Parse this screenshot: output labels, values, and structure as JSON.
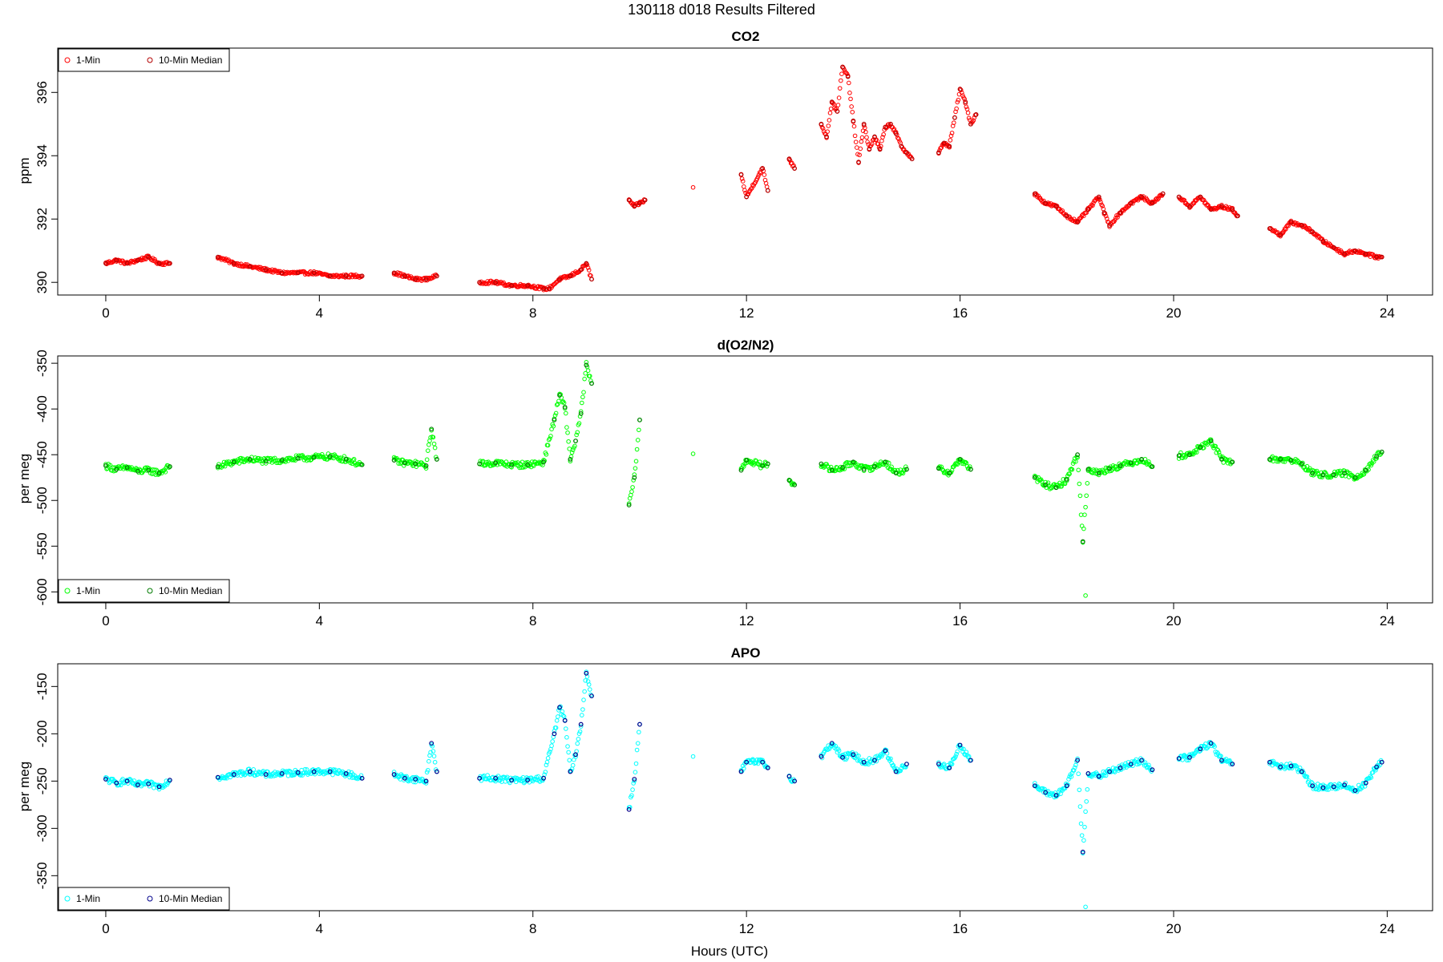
{
  "figure": {
    "title": "130118   d018   Results Filtered",
    "xlabel": "Hours (UTC)"
  },
  "chart_data": [
    {
      "type": "scatter",
      "title": "CO2",
      "ylabel": "ppm",
      "xlim": [
        -0.9,
        24.85
      ],
      "ylim": [
        389.6,
        397.4
      ],
      "xticks": [
        0,
        4,
        8,
        12,
        16,
        20,
        24
      ],
      "yticks": [
        390,
        392,
        394,
        396
      ],
      "legend": {
        "position": "top-left",
        "entries": [
          "1-Min",
          "10-Min Median"
        ]
      },
      "color_1min": "#ff0000",
      "color_median": "#b30000",
      "segments": [
        {
          "x": [
            0.0,
            0.2,
            0.4,
            0.6,
            0.8,
            1.0,
            1.2
          ],
          "y": [
            390.6,
            390.7,
            390.6,
            390.7,
            390.8,
            390.6,
            390.6
          ]
        },
        {
          "x": [
            2.1,
            2.4,
            2.7,
            3.0,
            3.3,
            3.6,
            3.9,
            4.2,
            4.5,
            4.8
          ],
          "y": [
            390.8,
            390.6,
            390.5,
            390.4,
            390.3,
            390.3,
            390.3,
            390.2,
            390.2,
            390.2
          ]
        },
        {
          "x": [
            5.4,
            5.6,
            5.8,
            6.0,
            6.2
          ],
          "y": [
            390.3,
            390.2,
            390.1,
            390.1,
            390.2
          ]
        },
        {
          "x": [
            7.0,
            7.3,
            7.6,
            7.9,
            8.2,
            8.3,
            8.5,
            8.7,
            8.9,
            9.0,
            9.1
          ],
          "y": [
            390.0,
            390.0,
            389.9,
            389.9,
            389.8,
            389.8,
            390.1,
            390.2,
            390.4,
            390.6,
            390.1
          ]
        },
        {
          "x": [
            9.8,
            9.9,
            10.0,
            10.1
          ],
          "y": [
            392.6,
            392.4,
            392.5,
            392.6
          ]
        },
        {
          "x": [
            11.0
          ],
          "y": [
            393.0
          ]
        },
        {
          "x": [
            11.9,
            12.0,
            12.3,
            12.4
          ],
          "y": [
            393.4,
            392.7,
            393.6,
            392.9
          ]
        },
        {
          "x": [
            12.8,
            12.9
          ],
          "y": [
            393.9,
            393.6
          ]
        },
        {
          "x": [
            13.4,
            13.5,
            13.6,
            13.7,
            13.8,
            13.9,
            14.0,
            14.1,
            14.2,
            14.3,
            14.4,
            14.5,
            14.6,
            14.7,
            14.8,
            14.9,
            15.0,
            15.1
          ],
          "y": [
            395.0,
            394.6,
            395.7,
            395.4,
            396.8,
            396.5,
            395.1,
            393.8,
            395.0,
            394.2,
            394.6,
            394.2,
            394.9,
            395.0,
            394.7,
            394.3,
            394.1,
            393.9
          ]
        },
        {
          "x": [
            15.6,
            15.7,
            15.8,
            15.9,
            16.0,
            16.1,
            16.2,
            16.3
          ],
          "y": [
            394.1,
            394.4,
            394.3,
            395.2,
            396.1,
            395.7,
            395.0,
            395.3
          ]
        },
        {
          "x": [
            17.4,
            17.6,
            17.8,
            18.0,
            18.2,
            18.4,
            18.6,
            18.7,
            18.8,
            19.0,
            19.2,
            19.4,
            19.6,
            19.8
          ],
          "y": [
            392.8,
            392.5,
            392.4,
            392.1,
            391.9,
            392.3,
            392.7,
            392.2,
            391.8,
            392.2,
            392.5,
            392.7,
            392.5,
            392.8
          ]
        },
        {
          "x": [
            20.1,
            20.3,
            20.5,
            20.7,
            20.9,
            21.1,
            21.2
          ],
          "y": [
            392.7,
            392.4,
            392.7,
            392.3,
            392.4,
            392.3,
            392.1
          ]
        },
        {
          "x": [
            21.8,
            22.0,
            22.2,
            22.4,
            22.6,
            22.8,
            23.0,
            23.2,
            23.4,
            23.6,
            23.8,
            23.9
          ],
          "y": [
            391.7,
            391.5,
            391.9,
            391.8,
            391.6,
            391.3,
            391.1,
            390.9,
            391.0,
            390.9,
            390.8,
            390.8
          ]
        }
      ]
    },
    {
      "type": "scatter",
      "title": "d(O2/N2)",
      "ylabel": "per meg",
      "xlim": [
        -0.9,
        24.85
      ],
      "ylim": [
        -612,
        -342
      ],
      "xticks": [
        0,
        4,
        8,
        12,
        16,
        20,
        24
      ],
      "yticks": [
        -350,
        -400,
        -450,
        -500,
        -550,
        -600
      ],
      "legend": {
        "position": "bottom-left",
        "entries": [
          "1-Min",
          "10-Min Median"
        ]
      },
      "color_1min": "#00ff00",
      "color_median": "#007a00",
      "segments": [
        {
          "x": [
            0.0,
            0.2,
            0.4,
            0.6,
            0.8,
            1.0,
            1.2
          ],
          "y": [
            -462,
            -466,
            -464,
            -468,
            -467,
            -470,
            -463
          ]
        },
        {
          "x": [
            2.1,
            2.4,
            2.7,
            3.0,
            3.3,
            3.6,
            3.9,
            4.2,
            4.5,
            4.8
          ],
          "y": [
            -463,
            -458,
            -455,
            -457,
            -456,
            -454,
            -453,
            -452,
            -455,
            -461
          ]
        },
        {
          "x": [
            5.4,
            5.6,
            5.8,
            6.0,
            6.1,
            6.2
          ],
          "y": [
            -456,
            -459,
            -460,
            -462,
            -422,
            -455
          ]
        },
        {
          "x": [
            7.0,
            7.3,
            7.6,
            7.9,
            8.2,
            8.4,
            8.5,
            8.6,
            8.7,
            8.8,
            8.9,
            9.0,
            9.1
          ],
          "y": [
            -460,
            -459,
            -461,
            -461,
            -458,
            -412,
            -385,
            -398,
            -455,
            -435,
            -405,
            -352,
            -372
          ]
        },
        {
          "x": [
            9.8,
            9.9,
            10.0
          ],
          "y": [
            -505,
            -475,
            -412
          ]
        },
        {
          "x": [
            11.0
          ],
          "y": [
            -449
          ]
        },
        {
          "x": [
            11.9,
            12.0,
            12.3,
            12.4
          ],
          "y": [
            -467,
            -456,
            -462,
            -460
          ]
        },
        {
          "x": [
            12.8,
            12.9
          ],
          "y": [
            -478,
            -483
          ]
        },
        {
          "x": [
            13.4,
            13.6,
            13.8,
            14.0,
            14.2,
            14.4,
            14.6,
            14.8,
            15.0
          ],
          "y": [
            -460,
            -467,
            -464,
            -458,
            -466,
            -463,
            -458,
            -470,
            -466
          ]
        },
        {
          "x": [
            15.6,
            15.8,
            16.0,
            16.2
          ],
          "y": [
            -465,
            -470,
            -455,
            -466
          ]
        },
        {
          "x": [
            17.4,
            17.6,
            17.8,
            18.0,
            18.2,
            18.3,
            18.4,
            18.6,
            18.8,
            19.0,
            19.2,
            19.4,
            19.6
          ],
          "y": [
            -475,
            -483,
            -486,
            -477,
            -450,
            -545,
            -466,
            -470,
            -465,
            -462,
            -459,
            -455,
            -463
          ]
        },
        {
          "x": [
            20.1,
            20.3,
            20.5,
            20.7,
            20.9,
            21.1
          ],
          "y": [
            -451,
            -450,
            -442,
            -435,
            -455,
            -458
          ]
        },
        {
          "x": [
            21.8,
            22.0,
            22.2,
            22.4,
            22.6,
            22.8,
            23.0,
            23.2,
            23.4,
            23.6,
            23.8,
            23.9
          ],
          "y": [
            -455,
            -455,
            -456,
            -460,
            -470,
            -472,
            -472,
            -470,
            -475,
            -467,
            -452,
            -447
          ]
        },
        {
          "x": [
            18.35
          ],
          "y": [
            -604
          ]
        }
      ]
    },
    {
      "type": "scatter",
      "title": "APO",
      "ylabel": "per meg",
      "xlim": [
        -0.9,
        24.85
      ],
      "ylim": [
        -387,
        -126
      ],
      "xticks": [
        0,
        4,
        8,
        12,
        16,
        20,
        24
      ],
      "yticks": [
        -150,
        -200,
        -250,
        -300,
        -350
      ],
      "legend": {
        "position": "bottom-left",
        "entries": [
          "1-Min",
          "10-Min Median"
        ]
      },
      "color_1min": "#00ffff",
      "color_median": "#00008b",
      "segments": [
        {
          "x": [
            0.0,
            0.2,
            0.4,
            0.6,
            0.8,
            1.0,
            1.2
          ],
          "y": [
            -248,
            -252,
            -250,
            -254,
            -253,
            -256,
            -249
          ]
        },
        {
          "x": [
            2.1,
            2.4,
            2.7,
            3.0,
            3.3,
            3.6,
            3.9,
            4.2,
            4.5,
            4.8
          ],
          "y": [
            -246,
            -243,
            -240,
            -243,
            -242,
            -241,
            -240,
            -240,
            -242,
            -247
          ]
        },
        {
          "x": [
            5.4,
            5.6,
            5.8,
            6.0,
            6.1,
            6.2
          ],
          "y": [
            -243,
            -247,
            -248,
            -250,
            -210,
            -240
          ]
        },
        {
          "x": [
            7.0,
            7.3,
            7.6,
            7.9,
            8.2,
            8.4,
            8.5,
            8.6,
            8.7,
            8.8,
            8.9,
            9.0,
            9.1
          ],
          "y": [
            -247,
            -247,
            -249,
            -249,
            -247,
            -200,
            -172,
            -186,
            -240,
            -222,
            -190,
            -136,
            -160
          ]
        },
        {
          "x": [
            9.8,
            9.9,
            10.0
          ],
          "y": [
            -280,
            -248,
            -190
          ]
        },
        {
          "x": [
            11.0
          ],
          "y": [
            -224
          ]
        },
        {
          "x": [
            11.9,
            12.0,
            12.3,
            12.4
          ],
          "y": [
            -240,
            -230,
            -230,
            -236
          ]
        },
        {
          "x": [
            12.8,
            12.9
          ],
          "y": [
            -245,
            -250
          ]
        },
        {
          "x": [
            13.4,
            13.6,
            13.8,
            14.0,
            14.2,
            14.4,
            14.6,
            14.8,
            15.0
          ],
          "y": [
            -224,
            -210,
            -225,
            -222,
            -230,
            -228,
            -218,
            -240,
            -232
          ]
        },
        {
          "x": [
            15.6,
            15.8,
            16.0,
            16.2
          ],
          "y": [
            -232,
            -236,
            -212,
            -228
          ]
        },
        {
          "x": [
            17.4,
            17.6,
            17.8,
            18.0,
            18.2,
            18.3,
            18.4,
            18.6,
            18.8,
            19.0,
            19.2,
            19.4,
            19.6
          ],
          "y": [
            -255,
            -262,
            -265,
            -255,
            -228,
            -325,
            -242,
            -245,
            -240,
            -236,
            -232,
            -228,
            -238
          ]
        },
        {
          "x": [
            20.1,
            20.3,
            20.5,
            20.7,
            20.9,
            21.1
          ],
          "y": [
            -226,
            -225,
            -216,
            -210,
            -228,
            -232
          ]
        },
        {
          "x": [
            21.8,
            22.0,
            22.2,
            22.4,
            22.6,
            22.8,
            23.0,
            23.2,
            23.4,
            23.6,
            23.8,
            23.9
          ],
          "y": [
            -230,
            -235,
            -234,
            -240,
            -255,
            -257,
            -256,
            -254,
            -260,
            -252,
            -235,
            -230
          ]
        },
        {
          "x": [
            18.35
          ],
          "y": [
            -383
          ]
        }
      ]
    }
  ]
}
